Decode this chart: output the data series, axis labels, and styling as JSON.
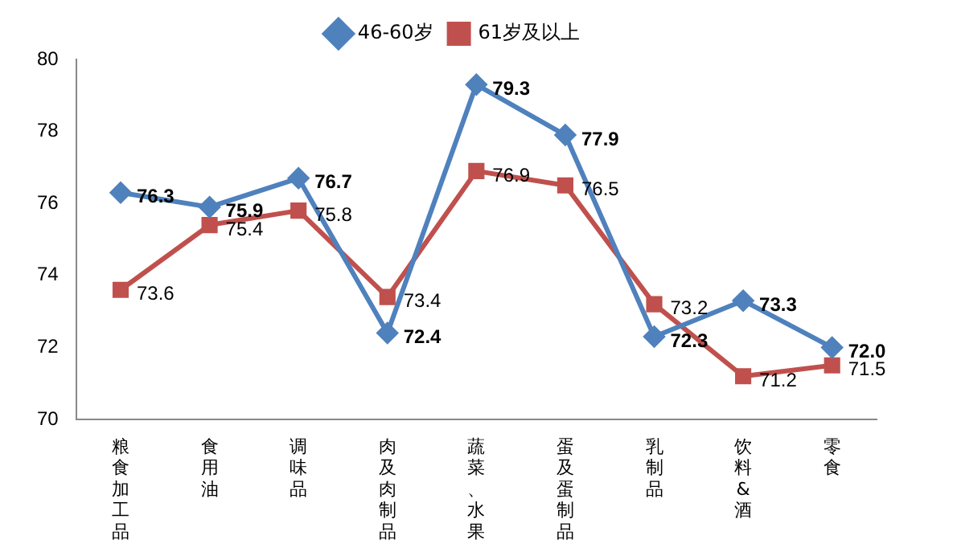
{
  "chart_data": {
    "type": "line",
    "categories": [
      "粮食加工品",
      "食用油",
      "调味品",
      "肉及肉制品",
      "蔬菜、水果",
      "蛋及蛋制品",
      "乳制品",
      "饮料&酒",
      "零食"
    ],
    "series": [
      {
        "name": "46-60岁",
        "color": "#4f81bd",
        "marker": "diamond",
        "values": [
          76.3,
          75.9,
          76.7,
          72.4,
          79.3,
          77.9,
          72.3,
          73.3,
          72.0
        ],
        "value_labels": [
          "76.3",
          "75.9",
          "76.7",
          "72.4",
          "79.3",
          "77.9",
          "72.3",
          "73.3",
          "72.0"
        ]
      },
      {
        "name": "61岁及以上",
        "color": "#c0504d",
        "marker": "square",
        "values": [
          73.6,
          75.4,
          75.8,
          73.4,
          76.9,
          76.5,
          73.2,
          71.2,
          71.5
        ],
        "value_labels": [
          "73.6",
          "75.4",
          "75.8",
          "73.4",
          "76.9",
          "76.5",
          "73.2",
          "71.2",
          "71.5"
        ]
      }
    ],
    "ylim": [
      70,
      80
    ],
    "yticks": [
      70,
      72,
      74,
      76,
      78,
      80
    ],
    "grid": false,
    "legend": "top"
  }
}
